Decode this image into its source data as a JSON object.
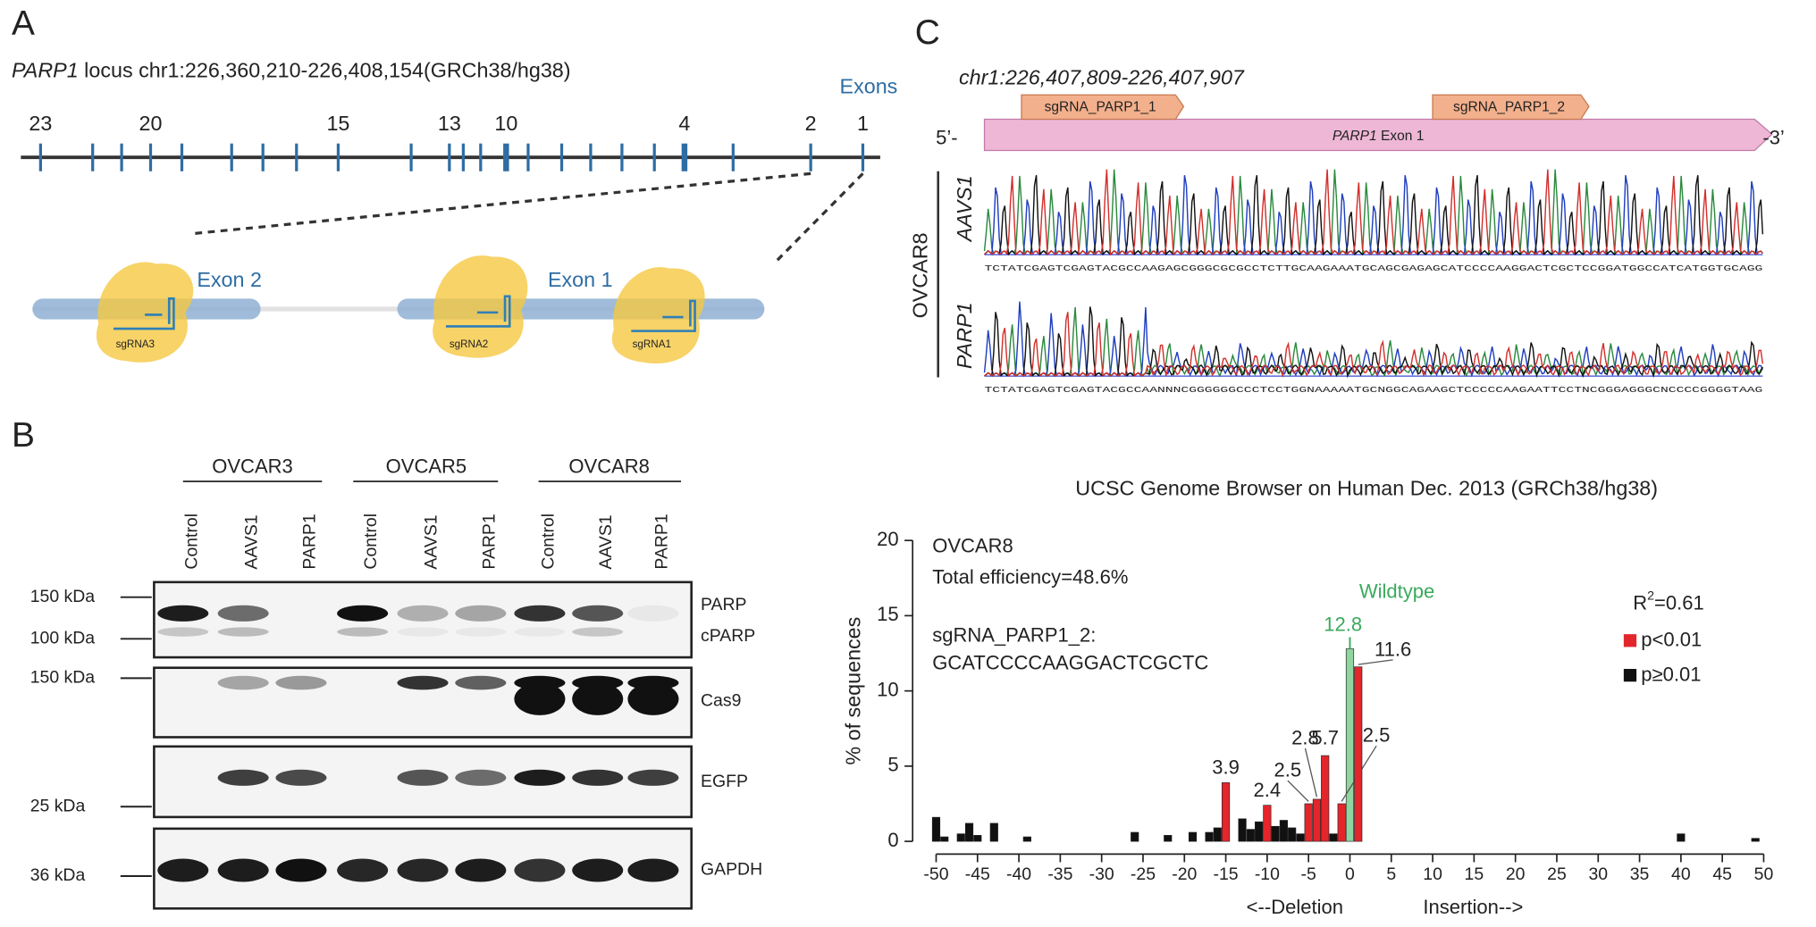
{
  "panel_a": {
    "label": "A",
    "gene": "PARP1",
    "locus": " locus chr1:226,360,210-226,408,154(GRCh38/hg38)",
    "exons_label": "Exons",
    "exon_numbers": [
      "23",
      "20",
      "15",
      "13",
      "10",
      "4",
      "2",
      "1"
    ],
    "exon2": "Exon 2",
    "exon1": "Exon 1",
    "sgrnas": [
      "sgRNA3",
      "sgRNA2",
      "sgRNA1"
    ]
  },
  "panel_b": {
    "label": "B",
    "cell_lines": [
      "OVCAR3",
      "OVCAR5",
      "OVCAR8"
    ],
    "lanes": [
      "Control",
      "AAVS1",
      "PARP1"
    ],
    "blots": [
      {
        "proteins": [
          "PARP",
          "cPARP"
        ],
        "markers": [
          "150 kDa",
          "100 kDa"
        ]
      },
      {
        "proteins": [
          "Cas9"
        ],
        "markers": [
          "150 kDa"
        ]
      },
      {
        "proteins": [
          "EGFP"
        ],
        "markers": [
          "25 kDa"
        ]
      },
      {
        "proteins": [
          "GAPDH"
        ],
        "markers": [
          "36 kDa"
        ]
      }
    ]
  },
  "panel_c": {
    "label": "C",
    "region": "chr1:226,407,809-226,407,907",
    "guides": [
      "sgRNA_PARP1_1",
      "sgRNA_PARP1_2"
    ],
    "five_prime": "5’-",
    "three_prime": "-3’",
    "exon_gene": "PARP1",
    "exon_rest": " Exon 1",
    "cell_line": "OVCAR8",
    "samples": [
      {
        "name": "AAVS1",
        "sequence": "TCTATCGAGTCGAGTACGCCAAGAGCGGGCGCGCCTCTTGCAAGAAATGCAGCGAGAGCATCCCCAAGGACTCGCTCCGGATGGCCATCATGGTGCAGG"
      },
      {
        "name": "PARP1",
        "sequence": "TCTATCGAGTCGAGTACGCCAANNNCGGGGGGCCCTCCTGGNAAAAATGCNGGCAGAAGCTCCCCCAAGAATTCCTNCGGGAGGGCNCCCCGGGGTAAG"
      }
    ],
    "browser": "UCSC Genome Browser on Human Dec. 2013 (GRCh38/hg38)"
  },
  "chart_data": {
    "type": "bar",
    "texts": [
      "OVCAR8",
      "Total efficiency=48.6%",
      "sgRNA_PARP1_2:",
      "GCATCCCCAAGGACTCGCTC"
    ],
    "ylabel": "% of sequences",
    "xlabels": [
      "<--Deletion",
      "Insertion-->"
    ],
    "r_squared": {
      "text": "R",
      "sup": "2",
      "rest": "=0.61"
    },
    "xlim": [
      -52,
      51
    ],
    "ylim": [
      0,
      20
    ],
    "xticks": [
      -50,
      -45,
      -40,
      -35,
      -30,
      -25,
      -20,
      -15,
      -10,
      -5,
      0,
      5,
      10,
      15,
      20,
      25,
      30,
      35,
      40,
      45,
      50
    ],
    "yticks": [
      0,
      5,
      10,
      15,
      20
    ],
    "series": [
      {
        "name": "p<0.01",
        "color": "#e3262b",
        "x": [
          -15,
          -10,
          -5,
          -4,
          -3,
          -1,
          1
        ],
        "values": [
          3.9,
          2.4,
          2.5,
          2.8,
          5.7,
          2.5,
          11.6
        ],
        "value_labels": [
          "3.9",
          "2.4",
          "2.5",
          "2.8",
          "5.7",
          "2.5",
          "11.6"
        ]
      },
      {
        "name": "p≥0.01",
        "color": "#111111",
        "x": [
          -50,
          -49,
          -47,
          -46,
          -45,
          -43,
          -39,
          -26,
          -22,
          -19,
          -17,
          -16,
          -13,
          -12,
          -11,
          -9,
          -8,
          -7,
          -6,
          -2,
          40,
          49
        ],
        "values": [
          1.6,
          0.3,
          0.5,
          1.2,
          0.4,
          1.2,
          0.3,
          0.6,
          0.4,
          0.6,
          0.6,
          0.9,
          1.5,
          0.8,
          1.3,
          1.0,
          1.4,
          0.9,
          0.5,
          0.5,
          0.5,
          0.2
        ]
      }
    ],
    "wildtype": {
      "label": "Wildtype",
      "x": 0,
      "value": 12.8,
      "color": "#90d4a0",
      "label_color": "#3aaa5c"
    }
  }
}
